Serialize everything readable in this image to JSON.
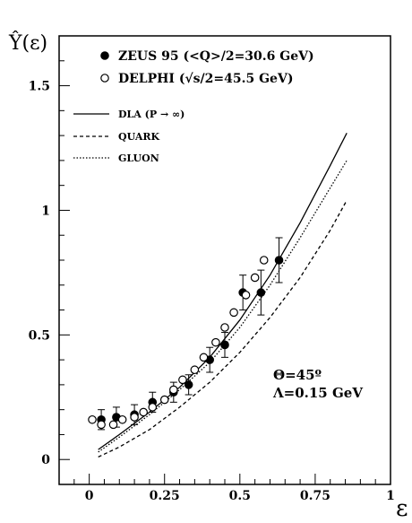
{
  "chart_data": {
    "type": "scatter",
    "ylabel": "Ŷ(ε)",
    "xlabel": "ε",
    "xlim": [
      -0.1,
      1.0
    ],
    "ylim": [
      -0.1,
      1.7
    ],
    "x_ticks": [
      "0",
      "0.25",
      "0.5",
      "0.75",
      "1"
    ],
    "x_tick_values": [
      0,
      0.25,
      0.5,
      0.75,
      1
    ],
    "y_ticks": [
      "0",
      "0.5",
      "1",
      "1.5"
    ],
    "y_tick_values": [
      0,
      0.5,
      1,
      1.5
    ],
    "grid": false,
    "legend_position": "top-left",
    "series": [
      {
        "name": "ZEUS 95 (<Q>/2=30.6 GeV)",
        "marker": "filled-circle",
        "x": [
          0.04,
          0.09,
          0.15,
          0.21,
          0.28,
          0.33,
          0.4,
          0.45,
          0.51,
          0.57,
          0.63
        ],
        "y": [
          0.16,
          0.17,
          0.18,
          0.23,
          0.27,
          0.3,
          0.4,
          0.46,
          0.67,
          0.67,
          0.8
        ],
        "yerr": [
          0.04,
          0.04,
          0.04,
          0.04,
          0.04,
          0.04,
          0.05,
          0.05,
          0.07,
          0.09,
          0.09
        ]
      },
      {
        "name": "DELPHI (√s/2=45.5 GeV)",
        "marker": "open-circle",
        "x": [
          0.01,
          0.04,
          0.08,
          0.11,
          0.15,
          0.18,
          0.21,
          0.25,
          0.28,
          0.31,
          0.35,
          0.38,
          0.42,
          0.45,
          0.48,
          0.52,
          0.55,
          0.58
        ],
        "y": [
          0.16,
          0.14,
          0.14,
          0.16,
          0.17,
          0.19,
          0.21,
          0.24,
          0.28,
          0.32,
          0.36,
          0.41,
          0.47,
          0.53,
          0.59,
          0.66,
          0.73,
          0.8
        ]
      },
      {
        "name": "DLA (P → ∞)",
        "line": "solid",
        "x": [
          0.03,
          0.1,
          0.2,
          0.3,
          0.4,
          0.5,
          0.6,
          0.7,
          0.8,
          0.855
        ],
        "y": [
          0.04,
          0.1,
          0.19,
          0.29,
          0.41,
          0.56,
          0.74,
          0.95,
          1.18,
          1.31
        ]
      },
      {
        "name": "QUARK",
        "line": "dashed",
        "x": [
          0.03,
          0.1,
          0.2,
          0.3,
          0.4,
          0.5,
          0.6,
          0.7,
          0.8,
          0.855
        ],
        "y": [
          0.01,
          0.05,
          0.12,
          0.21,
          0.31,
          0.43,
          0.57,
          0.73,
          0.92,
          1.04
        ]
      },
      {
        "name": "GLUON",
        "line": "dotted",
        "x": [
          0.03,
          0.1,
          0.2,
          0.3,
          0.4,
          0.5,
          0.6,
          0.7,
          0.8,
          0.855
        ],
        "y": [
          0.03,
          0.09,
          0.18,
          0.28,
          0.39,
          0.53,
          0.7,
          0.89,
          1.09,
          1.2
        ]
      }
    ],
    "annotations": [
      "Θ=45º",
      "Λ=0.15 GeV"
    ]
  }
}
